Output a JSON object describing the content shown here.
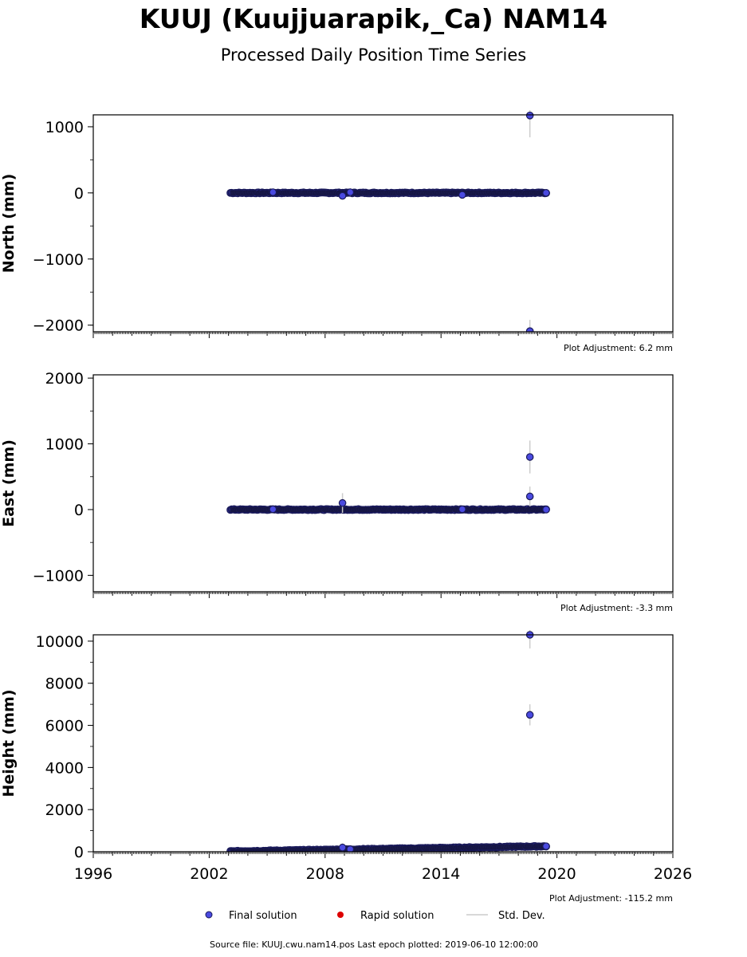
{
  "header": {
    "title": "KUUJ (Kuujjuarapik,_Ca) NAM14",
    "subtitle": "Processed Daily Position Time Series"
  },
  "colors": {
    "final": "#4a4ae0",
    "final_edge": "#1a1a5a",
    "rapid": "#dd0000",
    "stddev": "#cccccc"
  },
  "chart_data": [
    {
      "type": "scatter",
      "ylabel": "North (mm)",
      "xlim": [
        1996,
        2026
      ],
      "ylim": [
        -2100,
        1180
      ],
      "yticks": [
        -2000,
        -1000,
        0,
        1000
      ],
      "adjustment": "Plot Adjustment: 6.2 mm",
      "base": {
        "x_start": 2003.1,
        "x_end": 2019.44,
        "y": 0,
        "spread": 14
      },
      "outliers": [
        {
          "x": 2018.6,
          "y": 1170,
          "err": 660
        },
        {
          "x": 2018.6,
          "y": -2090,
          "err": 340
        },
        {
          "x": 2008.9,
          "y": -45,
          "err": 110
        },
        {
          "x": 2009.3,
          "y": 10,
          "err": 120
        },
        {
          "x": 2005.3,
          "y": 10,
          "err": 50
        },
        {
          "x": 2015.1,
          "y": -30,
          "err": 40
        },
        {
          "x": 2019.44,
          "y": 0,
          "err": 20
        }
      ]
    },
    {
      "type": "scatter",
      "ylabel": "East (mm)",
      "xlim": [
        1996,
        2026
      ],
      "ylim": [
        -1250,
        2050
      ],
      "yticks": [
        -1000,
        0,
        1000,
        2000
      ],
      "adjustment": "Plot Adjustment: -3.3 mm",
      "base": {
        "x_start": 2003.1,
        "x_end": 2019.44,
        "y": 0,
        "spread": 14
      },
      "outliers": [
        {
          "x": 2018.6,
          "y": 800,
          "err": 500
        },
        {
          "x": 2018.6,
          "y": 200,
          "err": 300
        },
        {
          "x": 2008.9,
          "y": 100,
          "err": 300
        },
        {
          "x": 2015.1,
          "y": 5,
          "err": 120
        },
        {
          "x": 2005.3,
          "y": 5,
          "err": 40
        },
        {
          "x": 2019.44,
          "y": 0,
          "err": 20
        }
      ]
    },
    {
      "type": "scatter",
      "ylabel": "Height (mm)",
      "xlim": [
        1996,
        2026
      ],
      "ylim": [
        0,
        10300
      ],
      "yticks": [
        0,
        2000,
        4000,
        6000,
        8000,
        10000
      ],
      "xticks": [
        1996,
        2002,
        2008,
        2014,
        2020,
        2026
      ],
      "adjustment": "Plot Adjustment: -115.2 mm",
      "base": {
        "x_start": 2003.1,
        "x_end": 2019.44,
        "y_start": 20,
        "y_end": 260,
        "spread": 40
      },
      "outliers": [
        {
          "x": 2018.6,
          "y": 10300,
          "err": 1300
        },
        {
          "x": 2018.6,
          "y": 6500,
          "err": 1000
        },
        {
          "x": 2008.9,
          "y": 200,
          "err": 400
        },
        {
          "x": 2009.3,
          "y": 120,
          "err": 400
        },
        {
          "x": 2019.44,
          "y": 260,
          "err": 60
        }
      ]
    }
  ],
  "legend": {
    "final": "Final solution",
    "rapid": "Rapid solution",
    "stddev": "Std. Dev."
  },
  "footer": {
    "source": "Source file: KUUJ.cwu.nam14.pos  Last epoch plotted: 2019-06-10 12:00:00"
  }
}
